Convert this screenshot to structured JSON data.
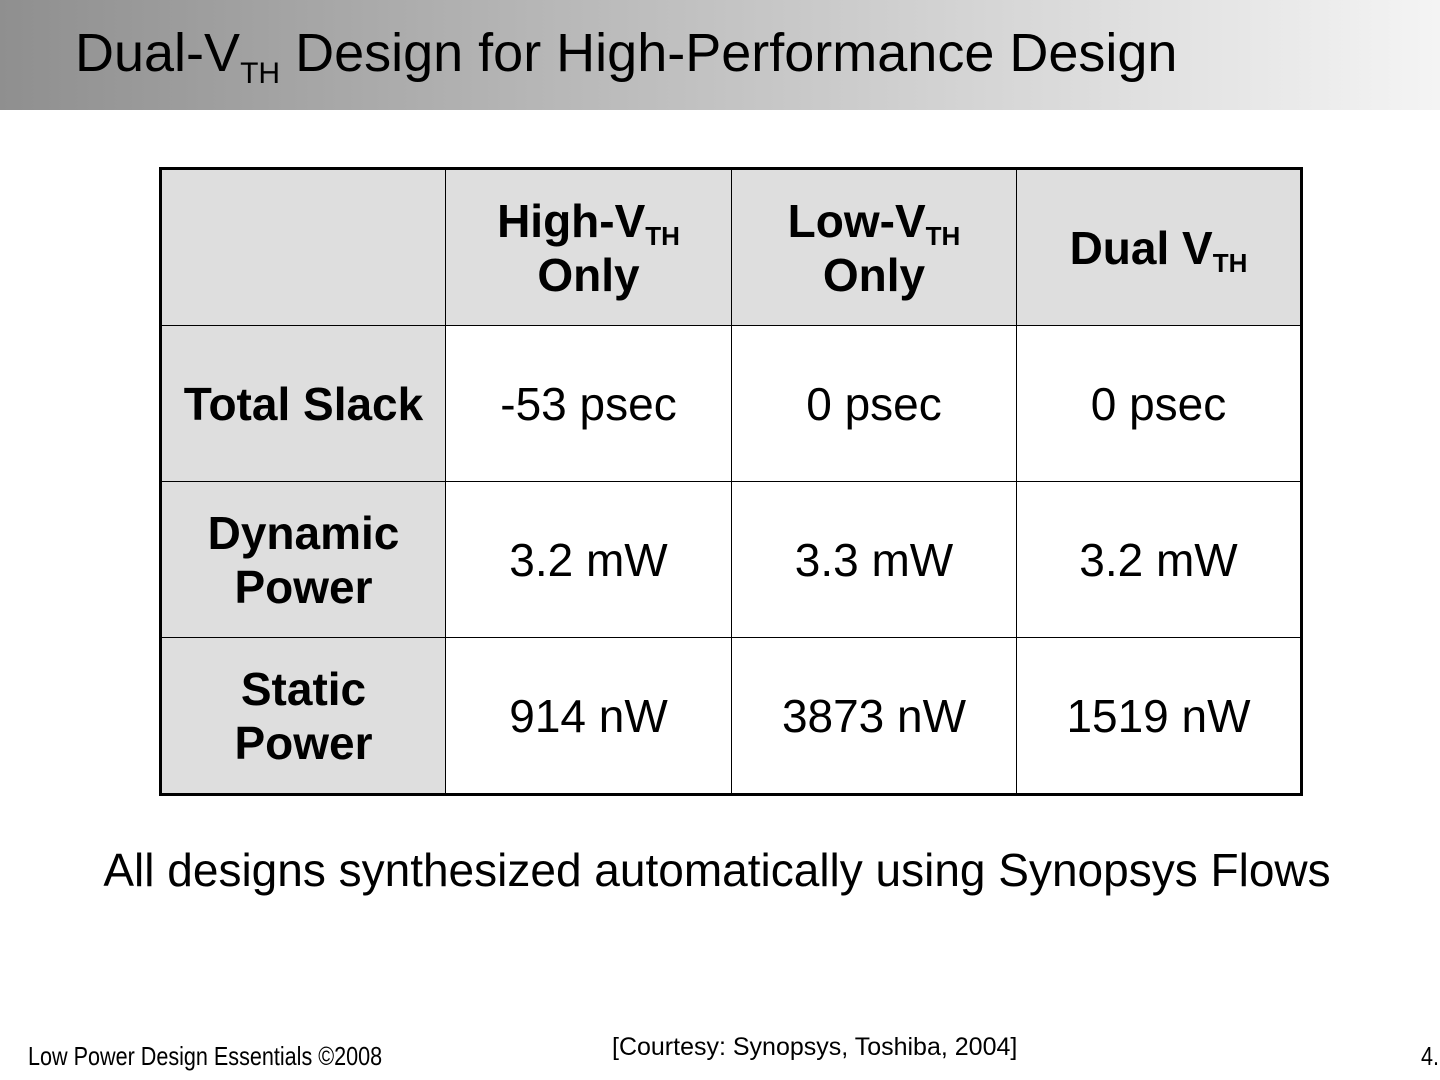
{
  "slide": {
    "title_prefix": "Dual-V",
    "title_sub": "TH",
    "title_suffix": " Design for High-Performance Design"
  },
  "table": {
    "corner": "",
    "columns": [
      {
        "prefix": "High-V",
        "sub": "TH",
        "suffix": "Only"
      },
      {
        "prefix": "Low-V",
        "sub": "TH",
        "suffix": "Only"
      },
      {
        "prefix": "Dual V",
        "sub": "TH",
        "suffix": ""
      }
    ],
    "rows": [
      {
        "label_line1": "Total Slack",
        "label_line2": "",
        "values": [
          "-53 psec",
          "0 psec",
          "0 psec"
        ]
      },
      {
        "label_line1": "Dynamic",
        "label_line2": "Power",
        "values": [
          "3.2 mW",
          "3.3 mW",
          "3.2 mW"
        ]
      },
      {
        "label_line1": "Static",
        "label_line2": "Power",
        "values": [
          "914 nW",
          "3873 nW",
          "1519 nW"
        ]
      }
    ]
  },
  "note": "All designs synthesized automatically using Synopsys Flows",
  "footer": {
    "left": "Low Power Design Essentials ©2008",
    "courtesy": "[Courtesy: Synopsys, Toshiba, 2004]",
    "page": "4."
  }
}
